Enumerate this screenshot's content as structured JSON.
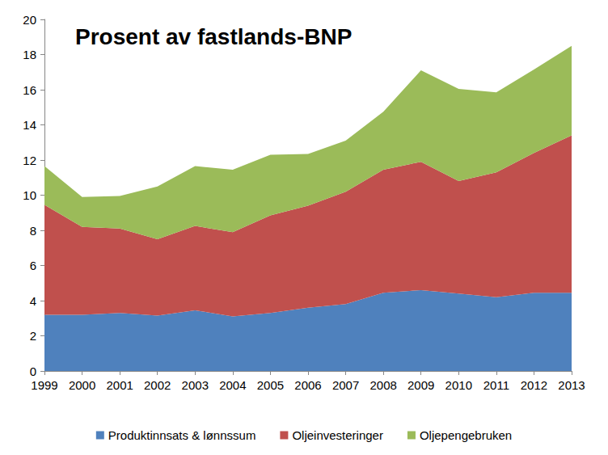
{
  "chart_data": {
    "type": "area",
    "title": "Prosent av fastlands-BNP",
    "categories": [
      "1999",
      "2000",
      "2001",
      "2002",
      "2003",
      "2004",
      "2005",
      "2006",
      "2007",
      "2008",
      "2009",
      "2010",
      "2011",
      "2012",
      "2013"
    ],
    "series": [
      {
        "name": "Produktinnsats & lønnssum",
        "color": "#4F81BD",
        "values": [
          3.2,
          3.2,
          3.3,
          3.15,
          3.45,
          3.1,
          3.3,
          3.6,
          3.8,
          4.45,
          4.6,
          4.4,
          4.2,
          4.45,
          4.45
        ]
      },
      {
        "name": "Oljeinvesteringer",
        "color": "#C0504D",
        "values": [
          6.25,
          5.0,
          4.8,
          4.35,
          4.8,
          4.8,
          5.55,
          5.8,
          6.4,
          7.0,
          7.3,
          6.4,
          7.1,
          7.95,
          8.95
        ]
      },
      {
        "name": "Oljepengebruken",
        "color": "#9BBB59",
        "values": [
          2.2,
          1.7,
          1.85,
          3.0,
          3.4,
          3.55,
          3.45,
          2.95,
          2.9,
          3.3,
          5.2,
          5.25,
          4.55,
          4.75,
          5.1
        ]
      }
    ],
    "ylim": [
      0,
      20
    ],
    "yticks": [
      0,
      2,
      4,
      6,
      8,
      10,
      12,
      14,
      16,
      18,
      20
    ],
    "grid": false,
    "stacked": true,
    "legend": "bottom"
  }
}
